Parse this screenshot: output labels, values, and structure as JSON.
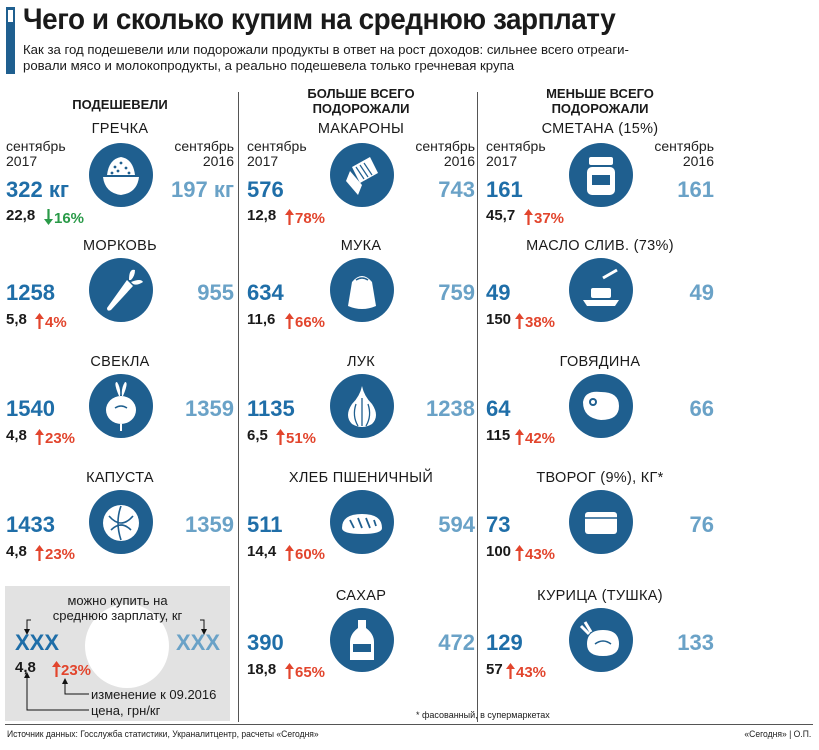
{
  "header": {
    "title": "Чего и сколько купим на среднюю зарплату",
    "subtitle_line1": "Как за год подешевели или подорожали продукты в ответ на рост доходов: сильнее всего отреаги-",
    "subtitle_line2": "ровали мясо и молокопродукты, а реально подешевела только гречневая крупа"
  },
  "period_label_2017": "сентябрь\n2017",
  "period_label_2016": "сентябрь\n2016",
  "colors": {
    "blue": "#1f6ea8",
    "light_blue": "#6aa2c7",
    "icon_blue": "#1f5f8f",
    "up_red": "#e2452d",
    "down_green": "#2a9a48"
  },
  "chart_data": {
    "type": "table",
    "title": "Чего и сколько купим на среднюю зарплату",
    "units": {
      "quantity": "кг",
      "price": "грн/кг",
      "change": "%"
    },
    "columns": [
      {
        "heading": "ПОДЕШЕВЕЛИ",
        "items": [
          {
            "name": "ГРЕЧКА",
            "icon": "buckwheat-bowl-icon",
            "kg_2017": "322 кг",
            "kg_2016": "197 кг",
            "price": "22,8",
            "change": "16%",
            "direction": "down"
          },
          {
            "name": "МОРКОВЬ",
            "icon": "carrot-icon",
            "kg_2017": "1258",
            "kg_2016": "955",
            "price": "5,8",
            "change": "4%",
            "direction": "up"
          },
          {
            "name": "СВЕКЛА",
            "icon": "beetroot-icon",
            "kg_2017": "1540",
            "kg_2016": "1359",
            "price": "4,8",
            "change": "23%",
            "direction": "up"
          },
          {
            "name": "КАПУСТА",
            "icon": "cabbage-icon",
            "kg_2017": "1433",
            "kg_2016": "1359",
            "price": "4,8",
            "change": "23%",
            "direction": "up"
          }
        ]
      },
      {
        "heading": "БОЛЬШЕ ВСЕГО\nПОДОРОЖАЛИ",
        "items": [
          {
            "name": "МАКАРОНЫ",
            "icon": "pasta-pack-icon",
            "kg_2017": "576",
            "kg_2016": "743",
            "price": "12,8",
            "change": "78%",
            "direction": "up"
          },
          {
            "name": "МУКА",
            "icon": "flour-sack-icon",
            "kg_2017": "634",
            "kg_2016": "759",
            "price": "11,6",
            "change": "66%",
            "direction": "up"
          },
          {
            "name": "ЛУК",
            "icon": "onion-garlic-icon",
            "kg_2017": "1135",
            "kg_2016": "1238",
            "price": "6,5",
            "change": "51%",
            "direction": "up"
          },
          {
            "name": "ХЛЕБ ПШЕНИЧНЫЙ",
            "icon": "bread-loaf-icon",
            "kg_2017": "511",
            "kg_2016": "594",
            "price": "14,4",
            "change": "60%",
            "direction": "up"
          },
          {
            "name": "САХАР",
            "icon": "sugar-bottle-icon",
            "kg_2017": "390",
            "kg_2016": "472",
            "price": "18,8",
            "change": "65%",
            "direction": "up"
          }
        ]
      },
      {
        "heading": "МЕНЬШЕ ВСЕГО\nПОДОРОЖАЛИ",
        "items": [
          {
            "name": "СМЕТАНА (15%)",
            "icon": "sour-cream-jar-icon",
            "kg_2017": "161",
            "kg_2016": "161",
            "price": "45,7",
            "change": "37%",
            "direction": "up"
          },
          {
            "name": "МАСЛО СЛИВ. (73%)",
            "icon": "butter-dish-icon",
            "kg_2017": "49",
            "kg_2016": "49",
            "price": "150",
            "change": "38%",
            "direction": "up"
          },
          {
            "name": "ГОВЯДИНА",
            "icon": "steak-icon",
            "kg_2017": "64",
            "kg_2016": "66",
            "price": "115",
            "change": "42%",
            "direction": "up"
          },
          {
            "name": "ТВОРОГ (9%), КГ*",
            "icon": "cottage-cheese-pack-icon",
            "kg_2017": "73",
            "kg_2016": "76",
            "price": "100",
            "change": "43%",
            "direction": "up"
          },
          {
            "name": "КУРИЦА (ТУШКА)",
            "icon": "chicken-icon",
            "kg_2017": "129",
            "kg_2016": "133",
            "price": "57",
            "change": "43%",
            "direction": "up"
          }
        ]
      }
    ]
  },
  "legend": {
    "can_buy_line1": "можно купить на",
    "can_buy_line2": "среднюю зарплату, кг",
    "placeholder_left": "XXX",
    "placeholder_right": "XXX",
    "sample_price": "4,8",
    "sample_change": "23%",
    "change_label": "изменение к 09.2016",
    "price_label": "цена, грн/кг"
  },
  "footer": {
    "footnote": "* фасованный, в супермаркетах",
    "source": "Источник данных: Госслужба статистики, Украналитцентр, расчеты «Сегодня»",
    "credit": "«Сегодня» | О.П."
  }
}
